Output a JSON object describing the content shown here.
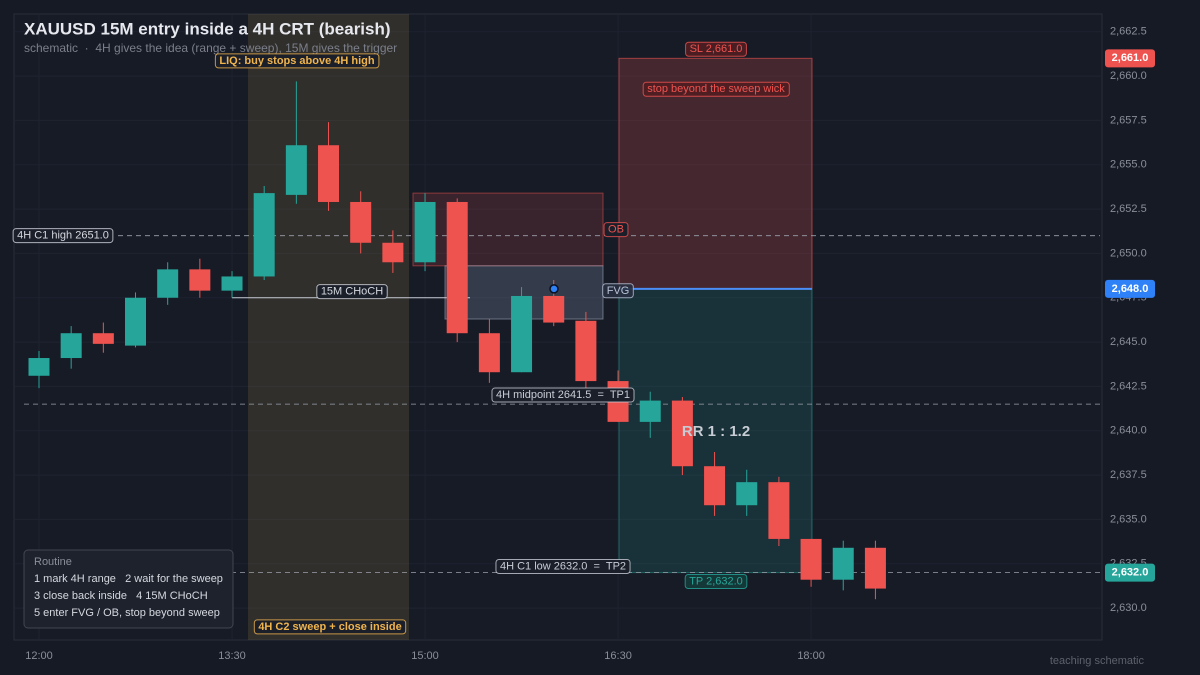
{
  "chart_data": {
    "type": "candlestick",
    "title": "XAUUSD 15M entry inside a 4H CRT (bearish)",
    "subtitle": "schematic  ·  4H gives the idea (range + sweep), 15M gives the trigger",
    "categories": [
      "12:00",
      null,
      null,
      null,
      null,
      null,
      "13:30",
      null,
      null,
      null,
      null,
      null,
      "15:00",
      null,
      null,
      null,
      null,
      null,
      "16:30",
      null,
      null,
      null,
      null,
      null,
      "18:00",
      null,
      null
    ],
    "open": [
      2643.1,
      2644.1,
      2645.5,
      2644.8,
      2647.5,
      2649.1,
      2647.9,
      2648.7,
      2653.3,
      2656.1,
      2652.9,
      2650.6,
      2649.5,
      2652.9,
      2645.5,
      2643.3,
      2647.6,
      2646.2,
      2642.8,
      2640.5,
      2641.7,
      2638.0,
      2635.8,
      2637.1,
      2633.9,
      2631.6,
      2633.4
    ],
    "high": [
      2644.5,
      2645.9,
      2646.1,
      2647.8,
      2649.5,
      2649.7,
      2649.0,
      2653.8,
      2659.7,
      2657.4,
      2653.5,
      2651.3,
      2653.4,
      2653.1,
      2646.3,
      2648.1,
      2648.5,
      2646.7,
      2643.4,
      2642.2,
      2641.9,
      2638.8,
      2637.8,
      2637.4,
      2633.9,
      2633.8,
      2633.8
    ],
    "low": [
      2642.4,
      2643.5,
      2644.4,
      2644.7,
      2647.1,
      2647.5,
      2647.5,
      2648.5,
      2652.8,
      2652.4,
      2650.0,
      2648.9,
      2649.0,
      2645.0,
      2642.7,
      2643.3,
      2645.9,
      2642.4,
      2640.5,
      2639.6,
      2637.5,
      2635.2,
      2635.2,
      2633.5,
      2631.2,
      2631.0,
      2630.5
    ],
    "close": [
      2644.1,
      2645.5,
      2644.9,
      2647.5,
      2649.1,
      2647.9,
      2648.7,
      2653.4,
      2656.1,
      2652.9,
      2650.6,
      2649.5,
      2652.9,
      2645.5,
      2643.3,
      2647.6,
      2646.1,
      2642.8,
      2640.5,
      2641.7,
      2638.0,
      2635.8,
      2637.1,
      2633.9,
      2631.6,
      2633.4,
      2631.1
    ],
    "up_color": "#26a69a",
    "down_color": "#ef5350",
    "ylim": [
      2628.2,
      2663.5
    ],
    "yticks": [
      {
        "value": 2630,
        "label": "2,630.0"
      },
      {
        "value": 2632.5,
        "label": "2,632.5"
      },
      {
        "value": 2635,
        "label": "2,635.0"
      },
      {
        "value": 2637.5,
        "label": "2,637.5"
      },
      {
        "value": 2640,
        "label": "2,640.0"
      },
      {
        "value": 2642.5,
        "label": "2,642.5"
      },
      {
        "value": 2645,
        "label": "2,645.0"
      },
      {
        "value": 2647.5,
        "label": "2,647.5"
      },
      {
        "value": 2650,
        "label": "2,650.0"
      },
      {
        "value": 2652.5,
        "label": "2,652.5"
      },
      {
        "value": 2655,
        "label": "2,655.0"
      },
      {
        "value": 2657.5,
        "label": "2,657.5"
      },
      {
        "value": 2660,
        "label": "2,660.0"
      },
      {
        "value": 2662.5,
        "label": "2,662.5"
      }
    ],
    "grid": true,
    "levels": [
      {
        "label": "4H C1 high 2651.0",
        "value": 2651.0
      },
      {
        "label": "4H midpoint 2641.5  =  TP1",
        "value": 2641.5
      },
      {
        "label": "4H C1 low 2632.0  =  TP2",
        "value": 2632.0
      }
    ],
    "price_tags": [
      {
        "value": 2661.0,
        "label": "2,661.0",
        "color": "#ef5350"
      },
      {
        "value": 2648.0,
        "label": "2,648.0",
        "color": "#2f81f7"
      },
      {
        "value": 2632.0,
        "label": "2,632.0",
        "color": "#26a69a"
      }
    ],
    "ob": {
      "label": "OB",
      "top": 2653.4,
      "bottom": 2649.3
    },
    "fvg": {
      "label": "FVG",
      "top": 2649.3,
      "bottom": 2646.3
    },
    "choch": {
      "label": "15M CHoCH",
      "value": 2647.5
    },
    "trade": {
      "entry": 2648.0,
      "stop": 2661.0,
      "target": 2632.0,
      "sl_label": "SL 2,661.0",
      "tp_label": "TP 2,632.0",
      "rr_label": "RR 1 : 1.2",
      "stop_note": "stop beyond the sweep wick"
    },
    "sweep": {
      "top_label": "LIQ: buy stops above 4H high",
      "bottom_label": "4H C2 sweep + close inside"
    },
    "routine": {
      "title": "Routine",
      "lines": [
        "1 mark 4H range   2 wait for the sweep",
        "3 close back inside   4 15M CHoCH",
        "5 enter FVG / OB, stop beyond sweep"
      ]
    },
    "footer": "teaching schematic"
  }
}
